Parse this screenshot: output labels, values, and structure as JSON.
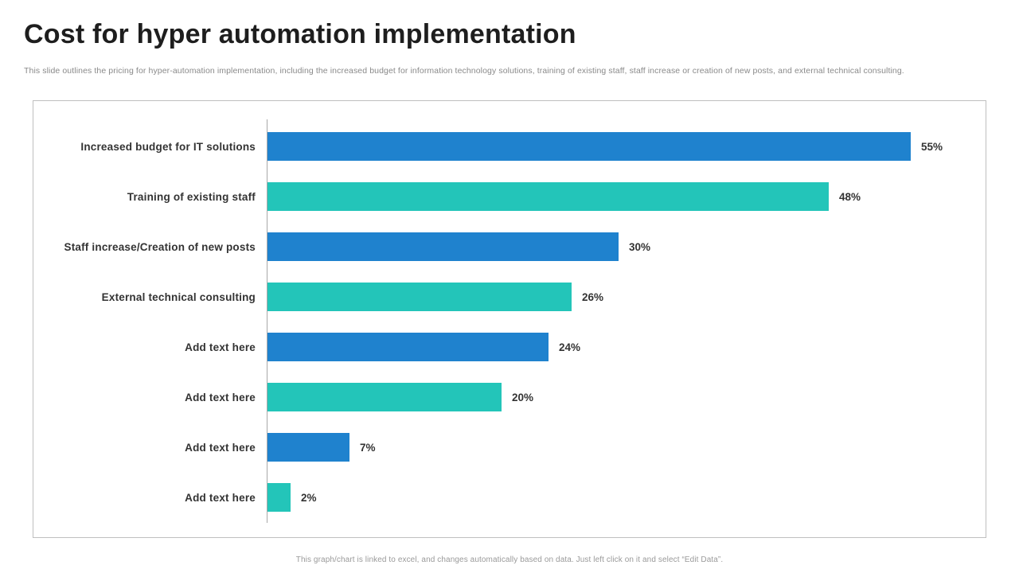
{
  "slide": {
    "title": "Cost for hyper automation implementation",
    "subtitle": "This slide outlines the pricing for hyper-automation implementation, including the increased budget for information technology solutions, training of existing staff, staff increase or creation of new posts, and external technical consulting.",
    "footer": "This graph/chart is linked to excel, and changes automatically based on data. Just left click on it and select “Edit Data”."
  },
  "colors": {
    "bar_blue": "#1F82CE",
    "bar_teal": "#23C5B9",
    "axis_line": "#a8a8a8",
    "frame_border": "#bfbfbf",
    "label_text": "#333333"
  },
  "chart_data": {
    "type": "bar",
    "orientation": "horizontal",
    "title": "",
    "xlabel": "",
    "ylabel": "",
    "categories": [
      "Increased budget for IT solutions",
      "Training of existing staff",
      "Staff increase/Creation of new posts",
      "External technical consulting",
      "Add text here",
      "Add text here",
      "Add text here",
      "Add text here"
    ],
    "values": [
      55,
      48,
      30,
      26,
      24,
      20,
      7,
      2
    ],
    "value_labels": [
      "55%",
      "48%",
      "30%",
      "26%",
      "24%",
      "20%",
      "7%",
      "2%"
    ],
    "bar_colors": [
      "#1F82CE",
      "#23C5B9",
      "#1F82CE",
      "#23C5B9",
      "#1F82CE",
      "#23C5B9",
      "#1F82CE",
      "#23C5B9"
    ],
    "xlim": [
      0,
      61.5
    ],
    "grid": false,
    "legend": false
  }
}
